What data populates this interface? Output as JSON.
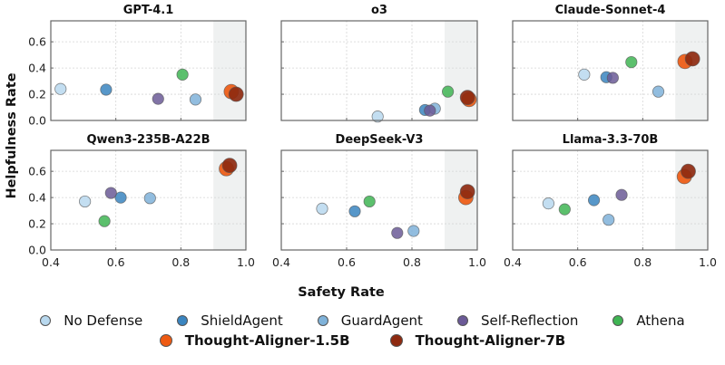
{
  "chart_data": {
    "type": "scatter",
    "xlabel": "Safety Rate",
    "ylabel": "Helpfulness Rate",
    "xlim": [
      0.4,
      1.0
    ],
    "ylim": [
      0.0,
      0.76
    ],
    "xticks": [
      0.4,
      0.6,
      0.8,
      1.0
    ],
    "xtick_labels": [
      "0.4",
      "0.6",
      "0.8",
      "1.0"
    ],
    "yticks": [
      0.0,
      0.2,
      0.4,
      0.6
    ],
    "ytick_labels": [
      "0.0",
      "0.2",
      "0.4",
      "0.6"
    ],
    "grid": true,
    "shaded_region": {
      "x_from": 0.9,
      "x_to": 1.0,
      "color": "#eff1f1"
    },
    "legend_placement": "bottom-center",
    "methods": [
      {
        "name": "No Defense",
        "color": "#b8d8ee",
        "bold": false,
        "size": "normal"
      },
      {
        "name": "ShieldAgent",
        "color": "#3a85c0",
        "bold": false,
        "size": "normal"
      },
      {
        "name": "GuardAgent",
        "color": "#7fb2d9",
        "bold": false,
        "size": "normal"
      },
      {
        "name": "Self-Reflection",
        "color": "#6b5a97",
        "bold": false,
        "size": "normal"
      },
      {
        "name": "Athena",
        "color": "#3fb553",
        "bold": false,
        "size": "normal"
      },
      {
        "name": "Thought-Aligner-1.5B",
        "color": "#ee5a12",
        "bold": true,
        "size": "large"
      },
      {
        "name": "Thought-Aligner-7B",
        "color": "#8e2a10",
        "bold": true,
        "size": "large"
      }
    ],
    "panels": [
      {
        "title": "GPT-4.1",
        "points": {
          "No Defense": [
            0.43,
            0.24
          ],
          "ShieldAgent": [
            0.57,
            0.235
          ],
          "GuardAgent": [
            0.845,
            0.16
          ],
          "Self-Reflection": [
            0.73,
            0.165
          ],
          "Athena": [
            0.805,
            0.35
          ],
          "Thought-Aligner-1.5B": [
            0.955,
            0.22
          ],
          "Thought-Aligner-7B": [
            0.97,
            0.2
          ]
        }
      },
      {
        "title": "o3",
        "points": {
          "No Defense": [
            0.695,
            0.03
          ],
          "ShieldAgent": [
            0.84,
            0.08
          ],
          "GuardAgent": [
            0.87,
            0.09
          ],
          "Self-Reflection": [
            0.855,
            0.075
          ],
          "Athena": [
            0.91,
            0.22
          ],
          "Thought-Aligner-1.5B": [
            0.975,
            0.16
          ],
          "Thought-Aligner-7B": [
            0.97,
            0.175
          ]
        }
      },
      {
        "title": "Claude-Sonnet-4",
        "points": {
          "No Defense": [
            0.62,
            0.35
          ],
          "ShieldAgent": [
            0.688,
            0.33
          ],
          "GuardAgent": [
            0.848,
            0.22
          ],
          "Self-Reflection": [
            0.708,
            0.325
          ],
          "Athena": [
            0.765,
            0.445
          ],
          "Thought-Aligner-1.5B": [
            0.93,
            0.45
          ],
          "Thought-Aligner-7B": [
            0.953,
            0.47
          ]
        }
      },
      {
        "title": "Qwen3-235B-A22B",
        "points": {
          "No Defense": [
            0.505,
            0.37
          ],
          "ShieldAgent": [
            0.615,
            0.4
          ],
          "GuardAgent": [
            0.705,
            0.395
          ],
          "Self-Reflection": [
            0.585,
            0.435
          ],
          "Athena": [
            0.565,
            0.22
          ],
          "Thought-Aligner-1.5B": [
            0.94,
            0.62
          ],
          "Thought-Aligner-7B": [
            0.95,
            0.645
          ]
        }
      },
      {
        "title": "DeepSeek-V3",
        "points": {
          "No Defense": [
            0.525,
            0.315
          ],
          "ShieldAgent": [
            0.625,
            0.295
          ],
          "GuardAgent": [
            0.805,
            0.145
          ],
          "Self-Reflection": [
            0.755,
            0.13
          ],
          "Athena": [
            0.67,
            0.37
          ],
          "Thought-Aligner-1.5B": [
            0.965,
            0.4
          ],
          "Thought-Aligner-7B": [
            0.97,
            0.445
          ]
        }
      },
      {
        "title": "Llama-3.3-70B",
        "points": {
          "No Defense": [
            0.51,
            0.355
          ],
          "ShieldAgent": [
            0.65,
            0.38
          ],
          "GuardAgent": [
            0.695,
            0.23
          ],
          "Self-Reflection": [
            0.735,
            0.42
          ],
          "Athena": [
            0.56,
            0.31
          ],
          "Thought-Aligner-1.5B": [
            0.928,
            0.56
          ],
          "Thought-Aligner-7B": [
            0.94,
            0.6
          ]
        }
      }
    ]
  }
}
